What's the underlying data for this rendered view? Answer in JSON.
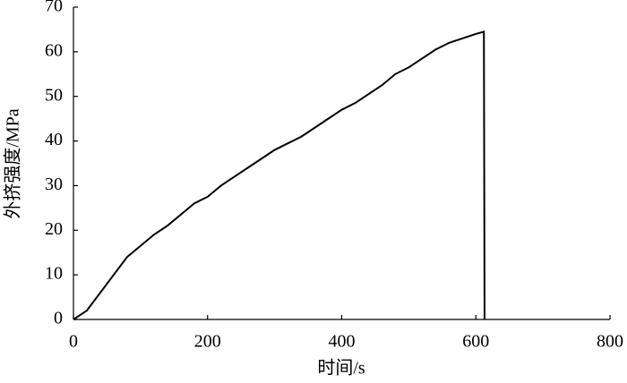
{
  "chart_data": {
    "type": "line",
    "x_label": "时间/s",
    "y_label": "外挤强度/MPa",
    "x": [
      0,
      20,
      40,
      60,
      80,
      100,
      120,
      140,
      160,
      180,
      200,
      220,
      240,
      260,
      280,
      300,
      320,
      340,
      360,
      380,
      400,
      420,
      440,
      460,
      480,
      500,
      520,
      540,
      560,
      580,
      600,
      612,
      613
    ],
    "series": [
      {
        "color": "#000000",
        "values": [
          0,
          2,
          6,
          10,
          14,
          16.5,
          19,
          21,
          23.5,
          26,
          27.5,
          30,
          32,
          34,
          36,
          38,
          39.5,
          41,
          43,
          45,
          47,
          48.5,
          50.5,
          52.5,
          55,
          56.5,
          58.5,
          60.5,
          62,
          63,
          64,
          64.5,
          0
        ]
      }
    ],
    "xlim": [
      0,
      800
    ],
    "xticks": [
      0,
      200,
      400,
      600,
      800
    ],
    "ylim": [
      0,
      70
    ],
    "yticks": [
      0,
      10,
      20,
      30,
      40,
      50,
      60,
      70
    ]
  }
}
